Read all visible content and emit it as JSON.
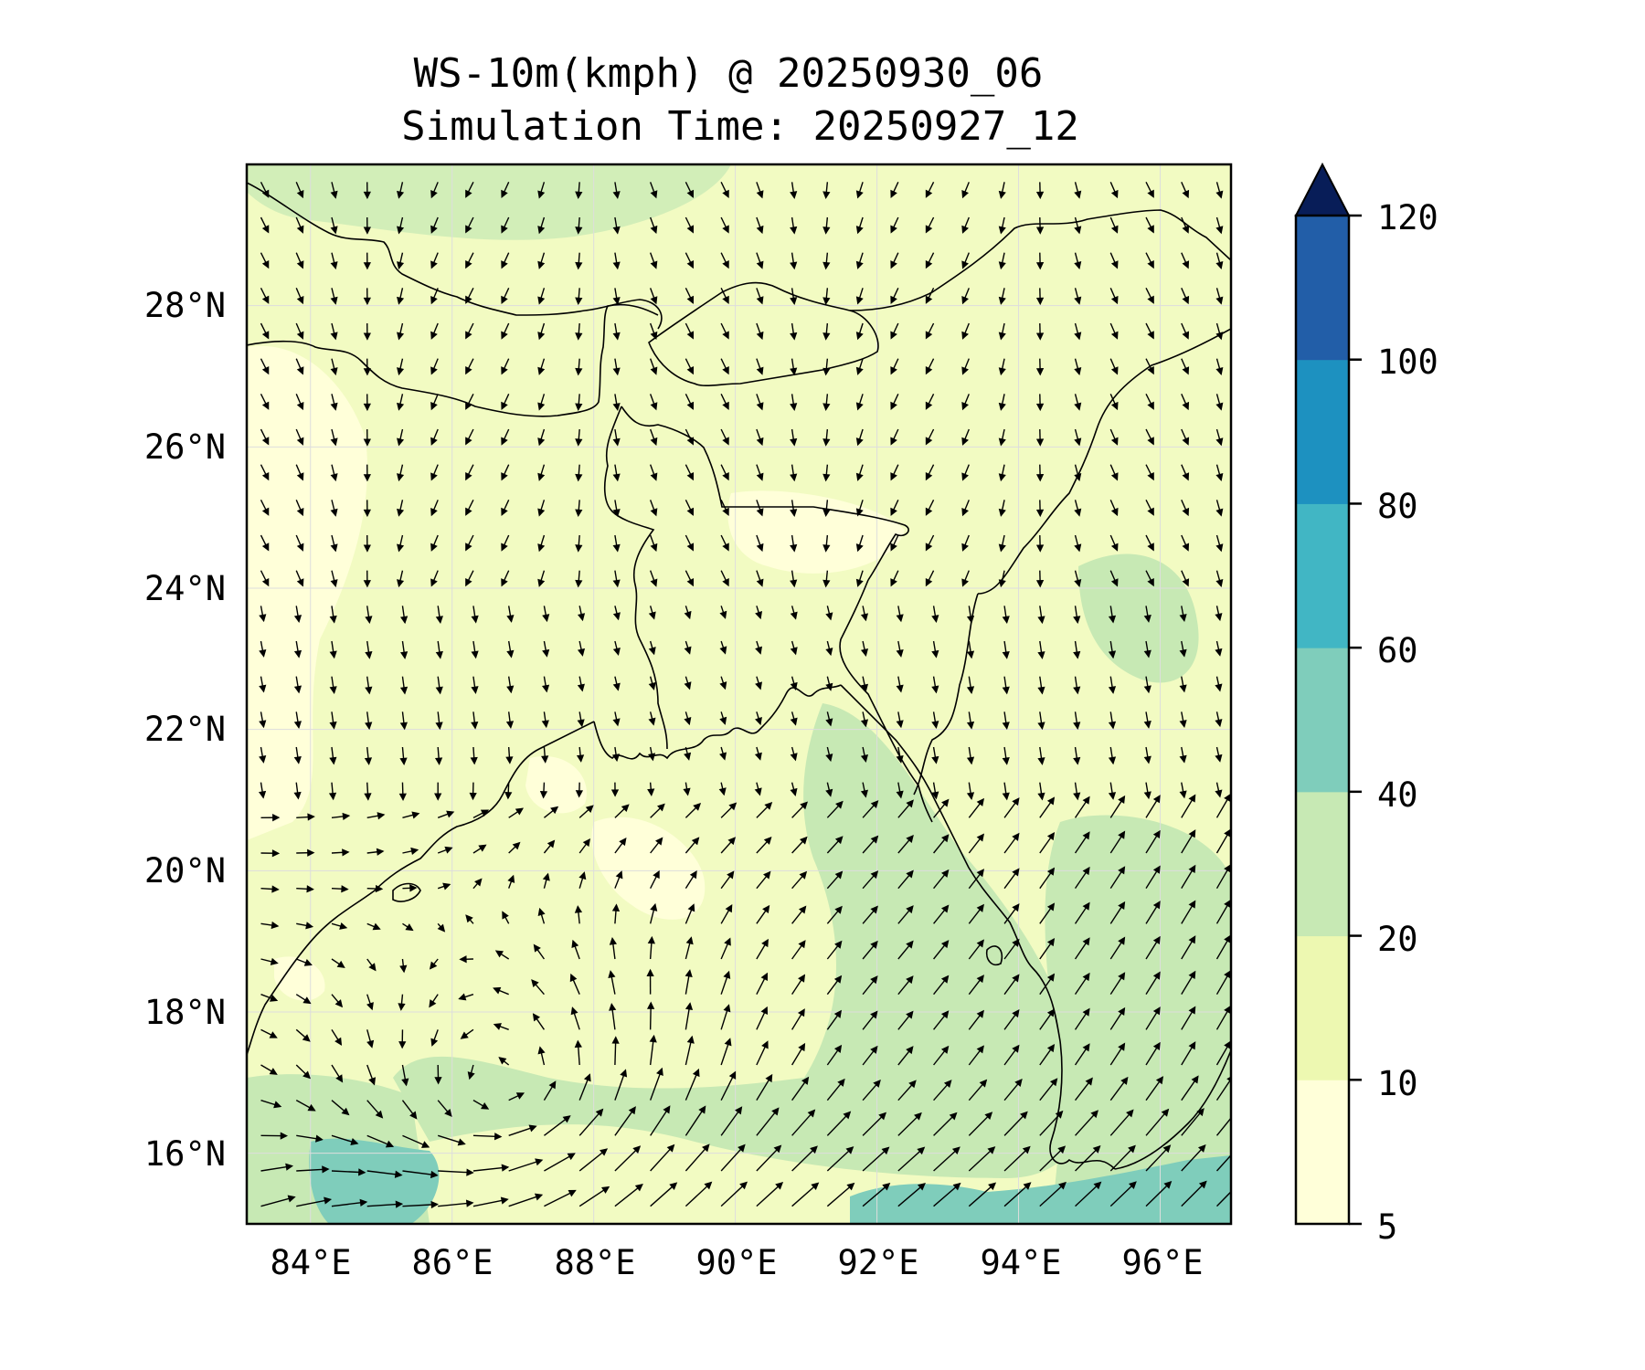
{
  "title": {
    "line1": "WS-10m(kmph) @ 20250930_06",
    "line2": "Simulation Time: 20250927_12"
  },
  "map": {
    "lon_range": [
      83.1,
      97.0
    ],
    "lat_range": [
      15.0,
      30.0
    ],
    "lon_ticks": [
      "84°E",
      "86°E",
      "88°E",
      "90°E",
      "92°E",
      "94°E",
      "96°E"
    ],
    "lon_tick_values": [
      84,
      86,
      88,
      90,
      92,
      94,
      96
    ],
    "lat_ticks": [
      "28°N",
      "26°N",
      "24°N",
      "22°N",
      "20°N",
      "18°N",
      "16°N"
    ],
    "lat_tick_values": [
      28,
      26,
      24,
      22,
      20,
      18,
      16
    ],
    "gridlines": true,
    "field": "10 m wind speed with wind direction arrows",
    "vector_grid_spacing_deg": 0.5
  },
  "colorbar": {
    "labels": [
      "5",
      "10",
      "20",
      "40",
      "60",
      "80",
      "100",
      "120"
    ],
    "levels": [
      5,
      10,
      20,
      40,
      60,
      80,
      100,
      120
    ],
    "colors": [
      "#ffffd9",
      "#edf8b1",
      "#c7e9b4",
      "#7fcdbb",
      "#41b6c4",
      "#1d91c0",
      "#225ea8",
      "#0c2c84"
    ],
    "extend": "max",
    "extend_color": "#081d58"
  },
  "colors": {
    "land_lowwind": "#ffffd9",
    "coast": "#000000",
    "arrow": "#000000",
    "grid": "#dddddd"
  }
}
